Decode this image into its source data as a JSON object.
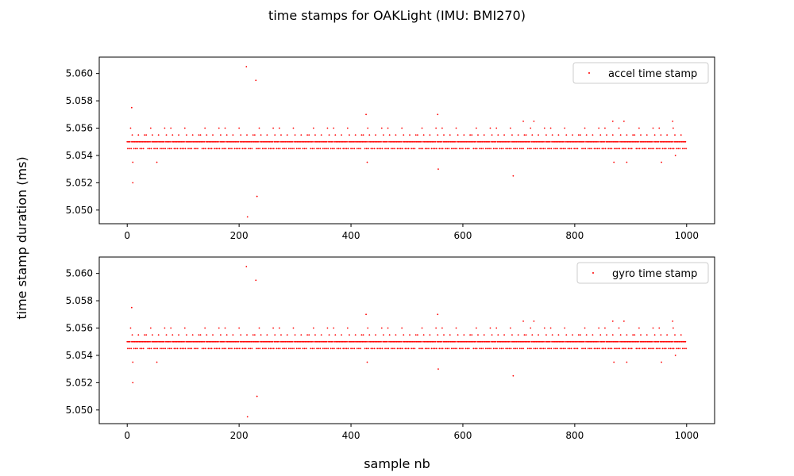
{
  "figure": {
    "title": "time stamps for OAKLight (IMU: BMI270)",
    "ylabel": "time stamp duration (ms)",
    "xlabel": "sample nb"
  },
  "colors": {
    "series": "#ff0000",
    "axes": "#000000",
    "background": "#ffffff"
  },
  "chart_data": [
    {
      "type": "scatter",
      "legend_position": "top-right",
      "grid": false,
      "xlim": [
        -50,
        1050
      ],
      "ylim": [
        5.049,
        5.0612
      ],
      "x_ticks": [
        0,
        200,
        400,
        600,
        800,
        1000
      ],
      "y_ticks": [
        5.05,
        5.052,
        5.054,
        5.056,
        5.058,
        5.06
      ],
      "x_tick_labels": [
        "0",
        "200",
        "400",
        "600",
        "800",
        "1000"
      ],
      "y_tick_labels": [
        "5.050",
        "5.052",
        "5.054",
        "5.056",
        "5.058",
        "5.060"
      ],
      "series": [
        {
          "name": "accel time stamp",
          "x_range": [
            0,
            999
          ],
          "baseline": 5.055,
          "alternate": 5.0545,
          "upper_step": 5.0555,
          "secondary": 5.056,
          "outliers": [
            {
              "x": 8,
              "y": 5.0575
            },
            {
              "x": 10,
              "y": 5.0535
            },
            {
              "x": 10,
              "y": 5.052
            },
            {
              "x": 53,
              "y": 5.0535
            },
            {
              "x": 213,
              "y": 5.0605
            },
            {
              "x": 230,
              "y": 5.0595
            },
            {
              "x": 232,
              "y": 5.051
            },
            {
              "x": 215,
              "y": 5.0495
            },
            {
              "x": 427,
              "y": 5.057
            },
            {
              "x": 429,
              "y": 5.0535
            },
            {
              "x": 555,
              "y": 5.057
            },
            {
              "x": 556,
              "y": 5.053
            },
            {
              "x": 690,
              "y": 5.0525
            },
            {
              "x": 708,
              "y": 5.0565
            },
            {
              "x": 727,
              "y": 5.0565
            },
            {
              "x": 868,
              "y": 5.0565
            },
            {
              "x": 870,
              "y": 5.0535
            },
            {
              "x": 888,
              "y": 5.0565
            },
            {
              "x": 893,
              "y": 5.0535
            },
            {
              "x": 955,
              "y": 5.0535
            },
            {
              "x": 975,
              "y": 5.0565
            },
            {
              "x": 980,
              "y": 5.054
            }
          ]
        }
      ]
    },
    {
      "type": "scatter",
      "legend_position": "top-right",
      "grid": false,
      "xlim": [
        -50,
        1050
      ],
      "ylim": [
        5.049,
        5.0612
      ],
      "x_ticks": [
        0,
        200,
        400,
        600,
        800,
        1000
      ],
      "y_ticks": [
        5.05,
        5.052,
        5.054,
        5.056,
        5.058,
        5.06
      ],
      "x_tick_labels": [
        "0",
        "200",
        "400",
        "600",
        "800",
        "1000"
      ],
      "y_tick_labels": [
        "5.050",
        "5.052",
        "5.054",
        "5.056",
        "5.058",
        "5.060"
      ],
      "series": [
        {
          "name": "gyro time stamp",
          "x_range": [
            0,
            999
          ],
          "baseline": 5.055,
          "alternate": 5.0545,
          "upper_step": 5.0555,
          "secondary": 5.056,
          "outliers": [
            {
              "x": 8,
              "y": 5.0575
            },
            {
              "x": 10,
              "y": 5.0535
            },
            {
              "x": 10,
              "y": 5.052
            },
            {
              "x": 53,
              "y": 5.0535
            },
            {
              "x": 213,
              "y": 5.0605
            },
            {
              "x": 230,
              "y": 5.0595
            },
            {
              "x": 232,
              "y": 5.051
            },
            {
              "x": 215,
              "y": 5.0495
            },
            {
              "x": 427,
              "y": 5.057
            },
            {
              "x": 429,
              "y": 5.0535
            },
            {
              "x": 555,
              "y": 5.057
            },
            {
              "x": 556,
              "y": 5.053
            },
            {
              "x": 690,
              "y": 5.0525
            },
            {
              "x": 708,
              "y": 5.0565
            },
            {
              "x": 727,
              "y": 5.0565
            },
            {
              "x": 868,
              "y": 5.0565
            },
            {
              "x": 870,
              "y": 5.0535
            },
            {
              "x": 888,
              "y": 5.0565
            },
            {
              "x": 893,
              "y": 5.0535
            },
            {
              "x": 955,
              "y": 5.0535
            },
            {
              "x": 975,
              "y": 5.0565
            },
            {
              "x": 980,
              "y": 5.054
            }
          ]
        }
      ]
    }
  ]
}
